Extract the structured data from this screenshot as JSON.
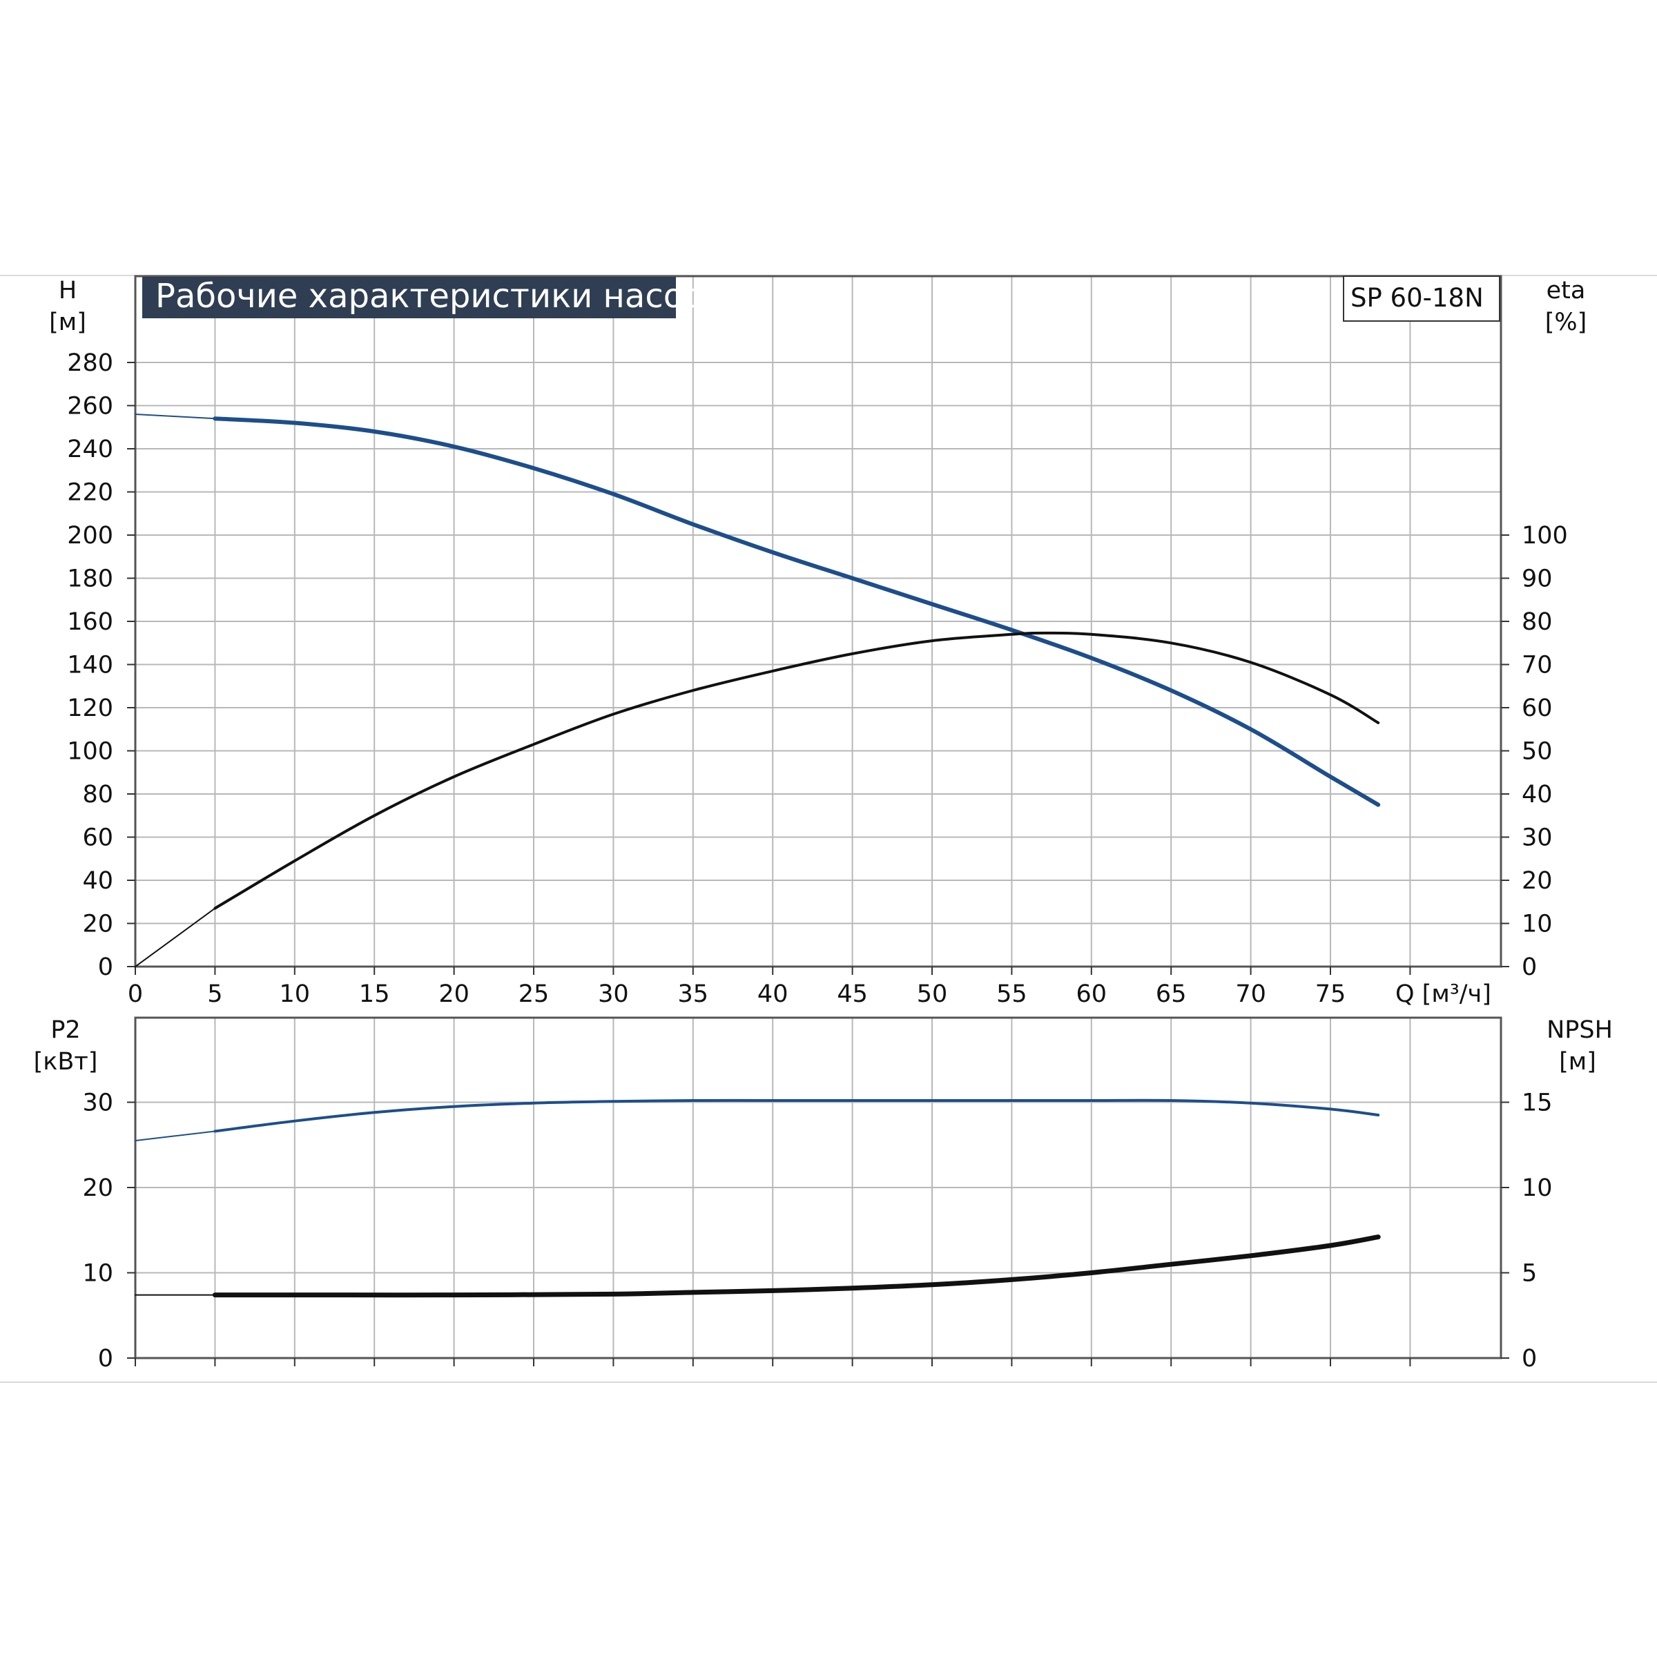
{
  "chart_data": [
    {
      "type": "line",
      "title": "Рабочие характеристики насоса",
      "model": "SP 60-18N",
      "xlabel": "Q [м³/ч]",
      "x_ticks": [
        "0",
        "5",
        "10",
        "15",
        "20",
        "25",
        "30",
        "35",
        "40",
        "45",
        "50",
        "55",
        "60",
        "65",
        "70",
        "75"
      ],
      "xlim": [
        0,
        85
      ],
      "ylabel_left_line1": "H",
      "ylabel_left_line2": "[м]",
      "ylim_left": [
        0,
        280
      ],
      "y_ticks_left": [
        "0",
        "20",
        "40",
        "60",
        "80",
        "100",
        "120",
        "140",
        "160",
        "180",
        "200",
        "220",
        "240",
        "260",
        "280"
      ],
      "ylabel_right_line1": "eta",
      "ylabel_right_line2": "[%]",
      "ylim_right": [
        0,
        100
      ],
      "y_ticks_right": [
        "0",
        "10",
        "20",
        "30",
        "40",
        "50",
        "60",
        "70",
        "80",
        "90",
        "100"
      ],
      "grid": true,
      "series": [
        {
          "key": "head",
          "axis": "left",
          "color": "#1d4e8c",
          "x": [
            0,
            5,
            10,
            15,
            20,
            25,
            30,
            35,
            40,
            45,
            50,
            55,
            60,
            65,
            70,
            75,
            78
          ],
          "y": [
            256,
            254,
            252,
            248,
            241,
            231,
            219,
            205,
            192,
            180,
            168,
            156,
            143,
            128,
            110,
            88,
            75
          ]
        },
        {
          "key": "efficiency",
          "axis": "right",
          "color": "#111111",
          "x": [
            0,
            5,
            10,
            15,
            20,
            25,
            30,
            35,
            40,
            45,
            50,
            55,
            57,
            60,
            65,
            70,
            75,
            78
          ],
          "y": [
            0,
            13.5,
            24.5,
            35,
            44,
            51.5,
            58.5,
            64,
            68.5,
            72.5,
            75.5,
            77,
            77.3,
            77,
            75,
            70.5,
            63,
            56.5
          ]
        }
      ]
    },
    {
      "type": "line",
      "xlim": [
        0,
        85
      ],
      "ylabel_left_line1": "P2",
      "ylabel_left_line2": "[кВт]",
      "ylim_left": [
        0,
        40
      ],
      "y_ticks_left": [
        "0",
        "10",
        "20",
        "30"
      ],
      "ylabel_right_line1": "NPSH",
      "ylabel_right_line2": "[м]",
      "ylim_right": [
        0,
        20
      ],
      "y_ticks_right": [
        "0",
        "5",
        "10",
        "15"
      ],
      "grid": true,
      "series": [
        {
          "key": "power",
          "axis": "left",
          "color": "#1d4e8c",
          "x": [
            0,
            5,
            10,
            15,
            20,
            25,
            30,
            35,
            40,
            45,
            50,
            55,
            60,
            65,
            70,
            75,
            78
          ],
          "y": [
            25.5,
            26.6,
            27.8,
            28.8,
            29.5,
            29.9,
            30.1,
            30.2,
            30.2,
            30.2,
            30.2,
            30.2,
            30.2,
            30.2,
            29.9,
            29.2,
            28.5
          ]
        },
        {
          "key": "npsh",
          "axis": "right",
          "color": "#111111",
          "x": [
            0,
            5,
            10,
            20,
            30,
            35,
            40,
            45,
            50,
            55,
            60,
            65,
            70,
            75,
            78
          ],
          "y": [
            3.7,
            3.7,
            3.7,
            3.7,
            3.75,
            3.85,
            3.95,
            4.1,
            4.3,
            4.6,
            5.0,
            5.5,
            6.0,
            6.6,
            7.1
          ]
        }
      ]
    }
  ]
}
